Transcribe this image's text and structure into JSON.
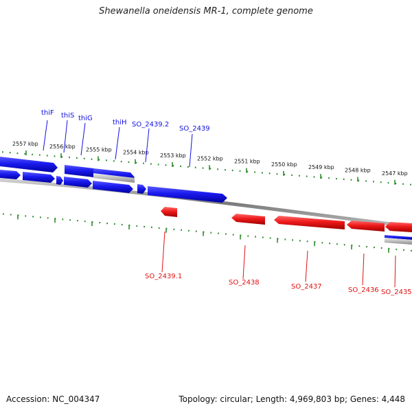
{
  "title": "Shewanella oneidensis MR-1, complete genome",
  "footer": {
    "accession": "Accession: NC_004347",
    "summary": "Topology: circular; Length: 4,969,803 bp; Genes: 4,448"
  },
  "colors": {
    "forward": "#1010e0",
    "reverse": "#e01010",
    "tick": "#2e8b2e",
    "backbone": "#8a8a8a"
  },
  "ticks": [
    {
      "label": "2557 kbp"
    },
    {
      "label": "2556 kbp"
    },
    {
      "label": "2555 kbp"
    },
    {
      "label": "2554 kbp"
    },
    {
      "label": "2553 kbp"
    },
    {
      "label": "2552 kbp"
    },
    {
      "label": "2551 kbp"
    },
    {
      "label": "2550 kbp"
    },
    {
      "label": "2549 kbp"
    },
    {
      "label": "2548 kbp"
    },
    {
      "label": "2547 kbp"
    }
  ],
  "forward_labels": [
    "thiF",
    "thiS",
    "thiG",
    "thiH",
    "SO_2439.2",
    "SO_2439"
  ],
  "reverse_labels": [
    "SO_2439.1",
    "SO_2438",
    "SO_2437",
    "SO_2436",
    "SO_2435"
  ]
}
